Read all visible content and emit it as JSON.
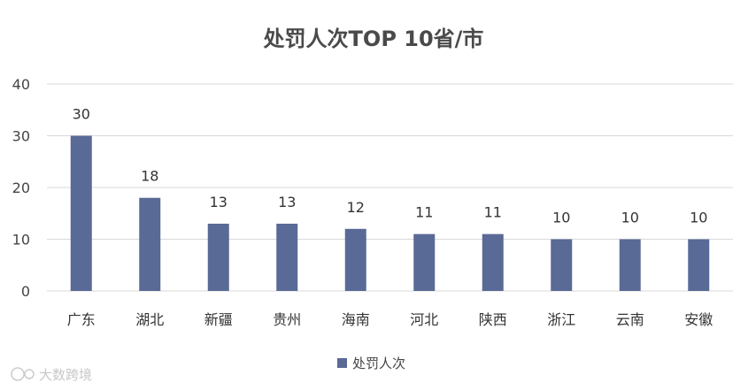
{
  "chart_data": {
    "type": "bar",
    "title": "处罚人次TOP 10省/市",
    "categories": [
      "广东",
      "湖北",
      "新疆",
      "贵州",
      "海南",
      "河北",
      "陕西",
      "浙江",
      "云南",
      "安徽"
    ],
    "series": [
      {
        "name": "处罚人次",
        "values": [
          30,
          18,
          13,
          13,
          12,
          11,
          11,
          10,
          10,
          10
        ],
        "color": "#5a6a96"
      }
    ],
    "ylim": [
      0,
      40
    ],
    "yticks": [
      0,
      10,
      20,
      30,
      40
    ],
    "grid": true,
    "legend_position": "bottom"
  },
  "watermark": "大数跨境",
  "colors": {
    "bar": "#5a6a96",
    "grid": "#d9d9d9",
    "watermark": "#c8c8c8"
  }
}
